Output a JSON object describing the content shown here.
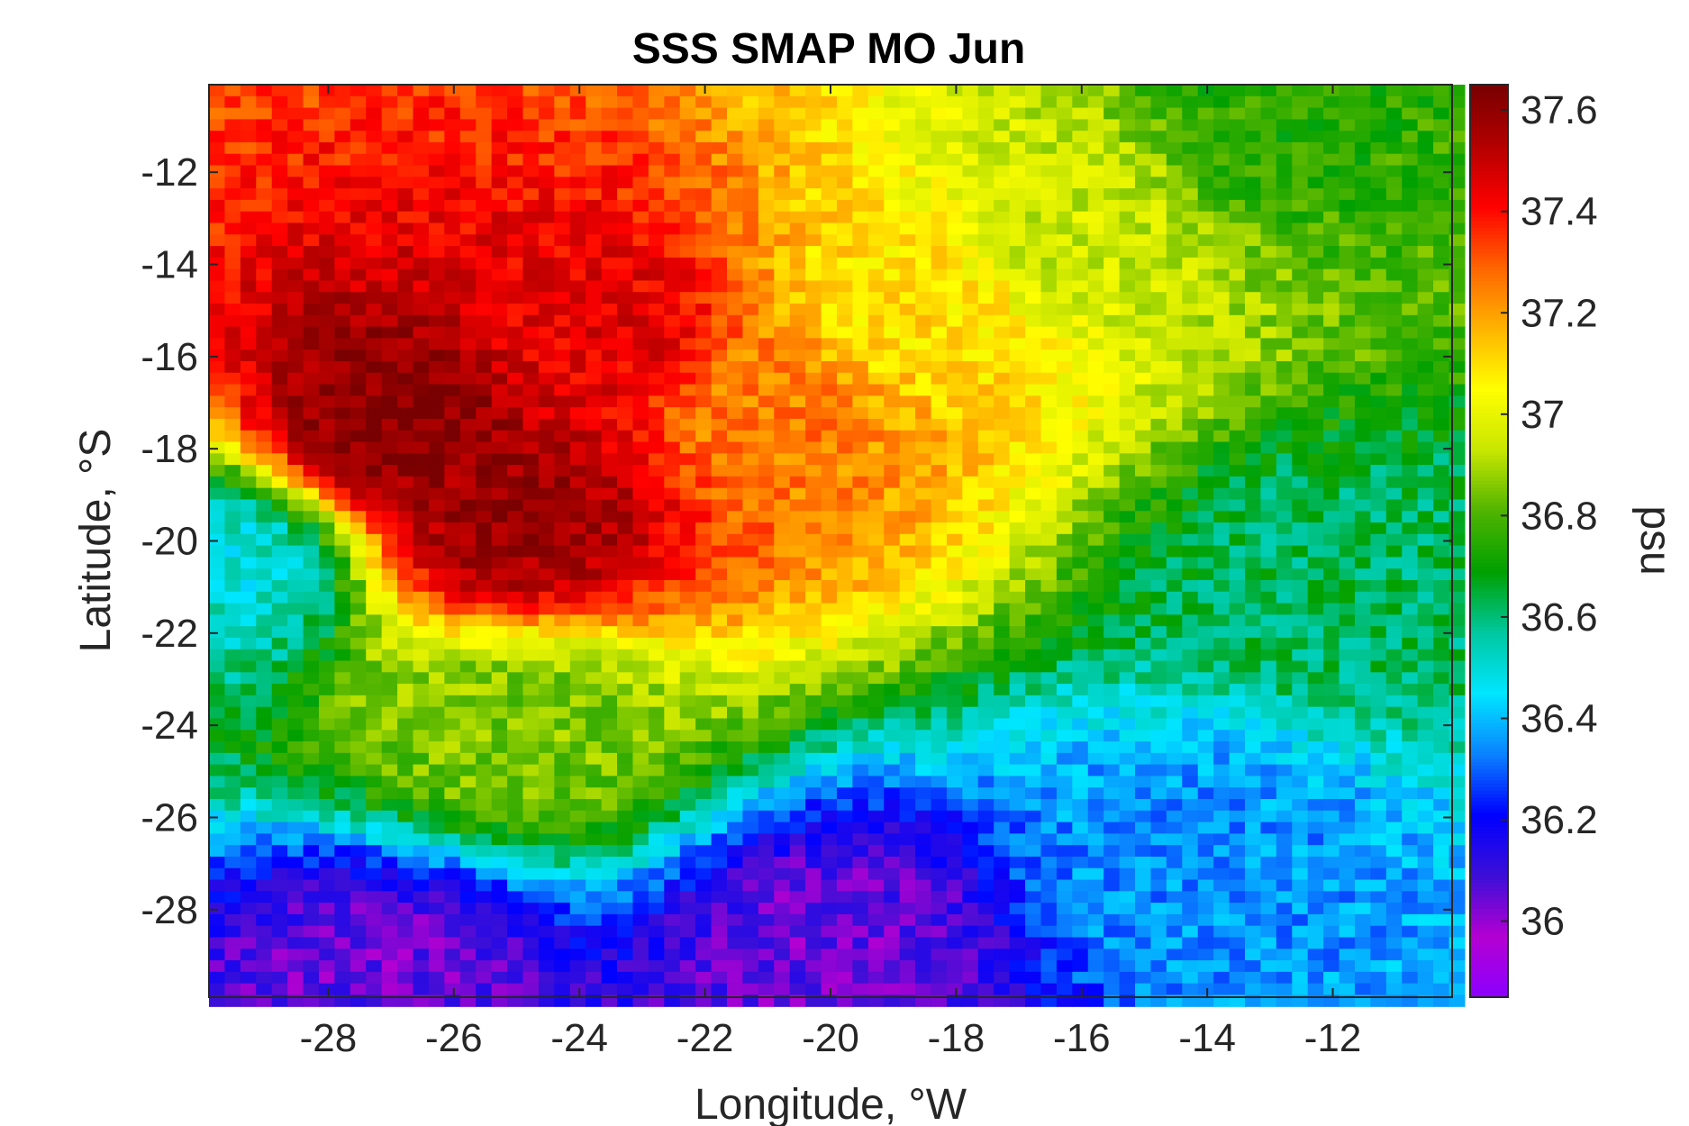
{
  "chart_data": {
    "type": "heatmap",
    "title": "SSS SMAP MO Jun",
    "xlabel": "Longitude, °W",
    "ylabel": "Latitude, °S",
    "colorbar_label": "psu",
    "xlim": [
      -29.9,
      -10.1
    ],
    "ylim": [
      -29.9,
      -10.1
    ],
    "clim": [
      35.85,
      37.65
    ],
    "cell_size_deg": 0.25,
    "x_ticks": [
      -28,
      -26,
      -24,
      -22,
      -20,
      -18,
      -16,
      -14,
      -12
    ],
    "x_tick_labels": [
      "-28",
      "-26",
      "-24",
      "-22",
      "-20",
      "-18",
      "-16",
      "-14",
      "-12"
    ],
    "y_ticks": [
      -12,
      -14,
      -16,
      -18,
      -20,
      -22,
      -24,
      -26,
      -28
    ],
    "y_tick_labels": [
      "-12",
      "-14",
      "-16",
      "-18",
      "-20",
      "-22",
      "-24",
      "-26",
      "-28"
    ],
    "colorbar_ticks": [
      37.6,
      37.4,
      37.2,
      37,
      36.8,
      36.6,
      36.4,
      36.2,
      36
    ],
    "colorbar_tick_labels": [
      "37.6",
      "37.4",
      "37.2",
      "37",
      "36.8",
      "36.6",
      "36.4",
      "36.2",
      "36"
    ],
    "colormap": [
      "#8b00ff",
      "#b400d2",
      "#3c0fd7",
      "#0000ff",
      "#0a82ff",
      "#00e6ff",
      "#00c8a0",
      "#00a000",
      "#50b400",
      "#c8e600",
      "#ffff00",
      "#ffb400",
      "#ff6400",
      "#ff0000",
      "#b40000",
      "#780000"
    ],
    "grid": false,
    "salinity_field_summary": [
      {
        "lon": -27.0,
        "lat": -17.5,
        "value": 37.62
      },
      {
        "lon": -25.0,
        "lat": -19.5,
        "value": 37.58
      },
      {
        "lon": -23.5,
        "lat": -15.5,
        "value": 37.45
      },
      {
        "lon": -21.0,
        "lat": -17.0,
        "value": 37.25
      },
      {
        "lon": -19.0,
        "lat": -15.0,
        "value": 37.1
      },
      {
        "lon": -16.0,
        "lat": -13.0,
        "value": 36.95
      },
      {
        "lon": -13.0,
        "lat": -11.0,
        "value": 36.75
      },
      {
        "lon": -12.0,
        "lat": -21.0,
        "value": 36.62
      },
      {
        "lon": -14.0,
        "lat": -27.0,
        "value": 36.35
      },
      {
        "lon": -20.0,
        "lat": -29.0,
        "value": 36.05
      },
      {
        "lon": -27.0,
        "lat": -29.5,
        "value": 36.05
      },
      {
        "lon": -25.0,
        "lat": -24.0,
        "value": 36.85
      },
      {
        "lon": -29.6,
        "lat": -20.5,
        "value": 36.5
      }
    ]
  }
}
